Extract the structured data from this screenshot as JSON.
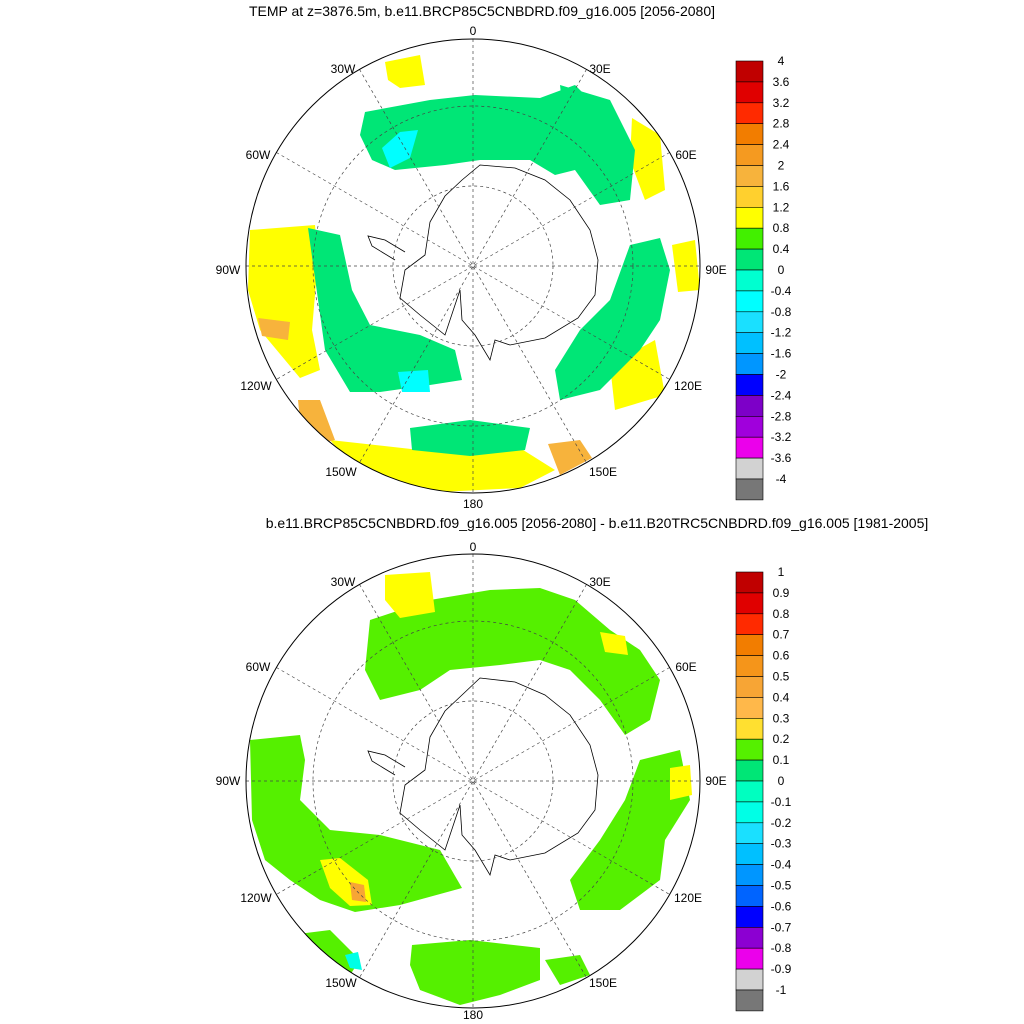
{
  "top_panel": {
    "title": "TEMP at z=3876.5m, b.e11.BRCP85C5CNBDRD.f09_g16.005 [2056-2080]",
    "colorbar": {
      "labels": [
        "4",
        "3.6",
        "3.2",
        "2.8",
        "2.4",
        "2",
        "1.6",
        "1.2",
        "0.8",
        "0.4",
        "0",
        "-0.4",
        "-0.8",
        "-1.2",
        "-1.6",
        "-2",
        "-2.4",
        "-2.8",
        "-3.2",
        "-3.6",
        "-4"
      ],
      "colors": [
        "#c00000",
        "#e00000",
        "#ff2a00",
        "#f27d00",
        "#f59a20",
        "#f7b33c",
        "#ffd02e",
        "#ffff00",
        "#42f000",
        "#00e676",
        "#00ffd0",
        "#00ffff",
        "#1ae0ff",
        "#00c0ff",
        "#0096ff",
        "#0000ff",
        "#7d00c8",
        "#a000dc",
        "#eb00eb",
        "#d2d2d2",
        "#777777"
      ]
    }
  },
  "bottom_panel": {
    "title": "b.e11.BRCP85C5CNBDRD.f09_g16.005 [2056-2080] - b.e11.B20TRC5CNBDRD.f09_g16.005 [1981-2005]",
    "colorbar": {
      "labels": [
        "1",
        "0.9",
        "0.8",
        "0.7",
        "0.6",
        "0.5",
        "0.4",
        "0.3",
        "0.2",
        "0.1",
        "0",
        "-0.1",
        "-0.2",
        "-0.3",
        "-0.4",
        "-0.5",
        "-0.6",
        "-0.7",
        "-0.8",
        "-0.9",
        "-1"
      ],
      "colors": [
        "#c00000",
        "#e00000",
        "#ff2a00",
        "#f27d00",
        "#f5951a",
        "#f7a535",
        "#ffb84a",
        "#ffe030",
        "#55f000",
        "#00e676",
        "#00ffc0",
        "#00ffe6",
        "#1ae0ff",
        "#00c0ff",
        "#0096ff",
        "#0064ff",
        "#0000ff",
        "#8c00d2",
        "#eb00eb",
        "#d2d2d2",
        "#777777"
      ]
    }
  },
  "map_labels": {
    "lon_0": "0",
    "lon_30e": "30E",
    "lon_60e": "60E",
    "lon_90e": "90E",
    "lon_120e": "120E",
    "lon_150e": "150E",
    "lon_180": "180",
    "lon_150w": "150W",
    "lon_120w": "120W",
    "lon_90w": "90W",
    "lon_60w": "60W",
    "lon_30w": "30W"
  },
  "colors": {
    "yellow": "#ffff00",
    "green": "#00e676",
    "lime": "#55f000",
    "cyan": "#00ffff",
    "orange": "#f7b33c",
    "land_outline": "#000000",
    "grid": "#444444"
  }
}
